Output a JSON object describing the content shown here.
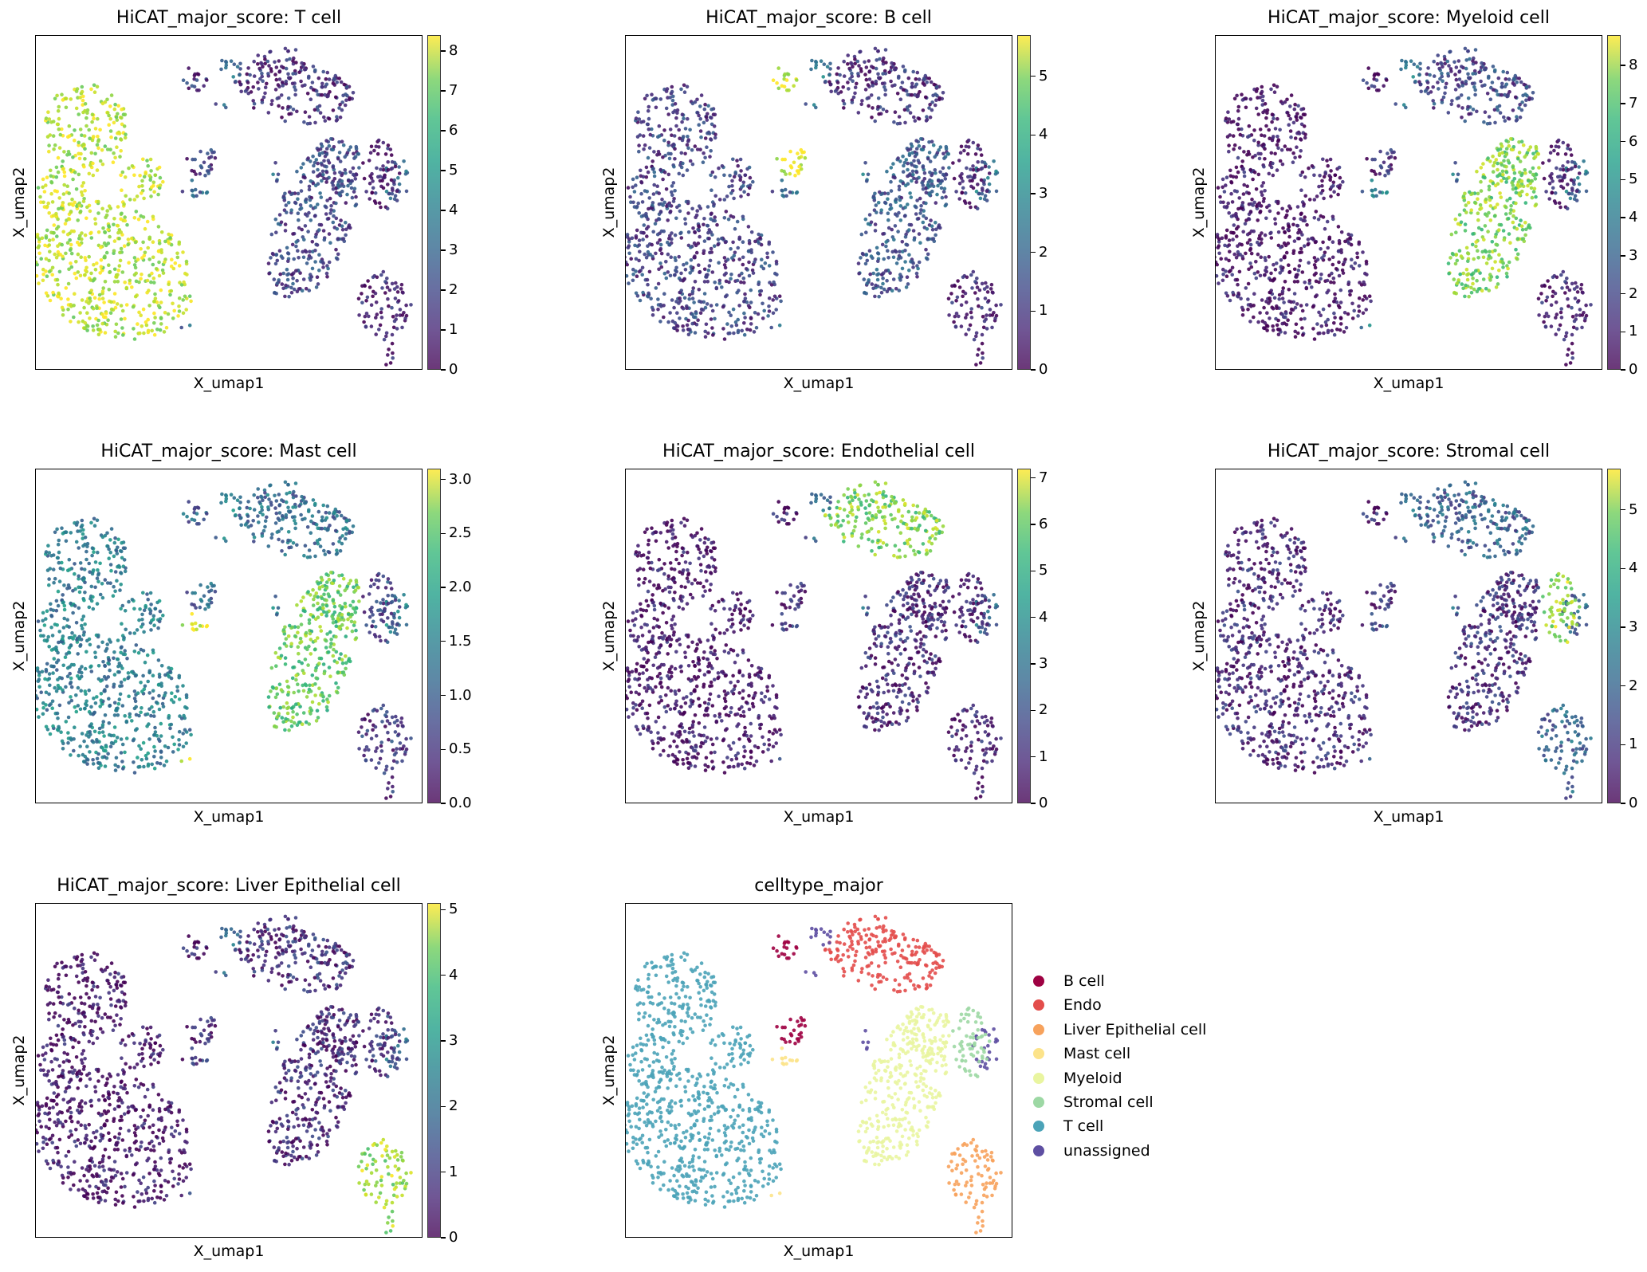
{
  "chart_data": [
    {
      "type": "scatter",
      "title": "HiCAT_major_score: T cell",
      "xlabel": "X_umap1",
      "ylabel": "X_umap2",
      "colorbar": {
        "min": 0,
        "max": 8.4,
        "ticks": [
          "0",
          "1",
          "2",
          "3",
          "4",
          "5",
          "6",
          "7",
          "8"
        ],
        "colormap": "viridis"
      },
      "cluster_levels": {
        "T cell": 0.9,
        "B cell": 0.15,
        "Myeloid": 0.2,
        "Endo": 0.12,
        "Stromal cell": 0.08,
        "Liver Epithelial cell": 0.08,
        "Mast cell": 0.3,
        "unassigned": 0.3
      }
    },
    {
      "type": "scatter",
      "title": "HiCAT_major_score: B cell",
      "xlabel": "X_umap1",
      "ylabel": "X_umap2",
      "colorbar": {
        "min": 0,
        "max": 5.7,
        "ticks": [
          "0",
          "1",
          "2",
          "3",
          "4",
          "5"
        ],
        "colormap": "viridis"
      },
      "cluster_levels": {
        "T cell": 0.18,
        "B cell": 0.95,
        "Myeloid": 0.25,
        "Endo": 0.12,
        "Stromal cell": 0.1,
        "Liver Epithelial cell": 0.08,
        "Mast cell": 0.3,
        "unassigned": 0.35
      }
    },
    {
      "type": "scatter",
      "title": "HiCAT_major_score: Myeloid cell",
      "xlabel": "X_umap1",
      "ylabel": "X_umap2",
      "colorbar": {
        "min": 0,
        "max": 8.8,
        "ticks": [
          "0",
          "1",
          "2",
          "3",
          "4",
          "5",
          "6",
          "7",
          "8"
        ],
        "colormap": "viridis"
      },
      "cluster_levels": {
        "T cell": 0.05,
        "B cell": 0.1,
        "Myeloid": 0.8,
        "Endo": 0.2,
        "Stromal cell": 0.1,
        "Liver Epithelial cell": 0.08,
        "Mast cell": 0.4,
        "unassigned": 0.35
      }
    },
    {
      "type": "scatter",
      "title": "HiCAT_major_score: Mast cell",
      "xlabel": "X_umap1",
      "ylabel": "X_umap2",
      "colorbar": {
        "min": 0.0,
        "max": 3.1,
        "ticks": [
          "0.0",
          "0.5",
          "1.0",
          "1.5",
          "2.0",
          "2.5",
          "3.0"
        ],
        "colormap": "viridis"
      },
      "cluster_levels": {
        "T cell": 0.42,
        "B cell": 0.3,
        "Myeloid": 0.75,
        "Endo": 0.35,
        "Stromal cell": 0.2,
        "Liver Epithelial cell": 0.15,
        "Mast cell": 0.95,
        "unassigned": 0.4
      }
    },
    {
      "type": "scatter",
      "title": "HiCAT_major_score: Endothelial cell",
      "xlabel": "X_umap1",
      "ylabel": "X_umap2",
      "colorbar": {
        "min": 0,
        "max": 7.2,
        "ticks": [
          "0",
          "1",
          "2",
          "3",
          "4",
          "5",
          "6",
          "7"
        ],
        "colormap": "viridis"
      },
      "cluster_levels": {
        "T cell": 0.05,
        "B cell": 0.08,
        "Myeloid": 0.1,
        "Endo": 0.8,
        "Stromal cell": 0.1,
        "Liver Epithelial cell": 0.08,
        "Mast cell": 0.15,
        "unassigned": 0.3
      }
    },
    {
      "type": "scatter",
      "title": "HiCAT_major_score: Stromal cell",
      "xlabel": "X_umap1",
      "ylabel": "X_umap2",
      "colorbar": {
        "min": 0,
        "max": 5.7,
        "ticks": [
          "0",
          "1",
          "2",
          "3",
          "4",
          "5"
        ],
        "colormap": "viridis"
      },
      "cluster_levels": {
        "T cell": 0.1,
        "B cell": 0.1,
        "Myeloid": 0.12,
        "Endo": 0.3,
        "Stromal cell": 0.85,
        "Liver Epithelial cell": 0.3,
        "Mast cell": 0.2,
        "unassigned": 0.3
      }
    },
    {
      "type": "scatter",
      "title": "HiCAT_major_score: Liver Epithelial cell",
      "xlabel": "X_umap1",
      "ylabel": "X_umap2",
      "colorbar": {
        "min": 0,
        "max": 5.1,
        "ticks": [
          "0",
          "1",
          "2",
          "3",
          "4",
          "5"
        ],
        "colormap": "viridis"
      },
      "cluster_levels": {
        "T cell": 0.05,
        "B cell": 0.08,
        "Myeloid": 0.1,
        "Endo": 0.12,
        "Stromal cell": 0.15,
        "Liver Epithelial cell": 0.85,
        "Mast cell": 0.15,
        "unassigned": 0.3
      }
    },
    {
      "type": "scatter",
      "title": "celltype_major",
      "xlabel": "X_umap1",
      "ylabel": "X_umap2",
      "legend": [
        {
          "label": "B cell",
          "color": "#9e0142"
        },
        {
          "label": "Endo",
          "color": "#e34d4b"
        },
        {
          "label": "Liver Epithelial cell",
          "color": "#f7a25c"
        },
        {
          "label": "Mast cell",
          "color": "#fce38a"
        },
        {
          "label": "Myeloid",
          "color": "#e9f5a0"
        },
        {
          "label": "Stromal cell",
          "color": "#9dd8a4"
        },
        {
          "label": "T cell",
          "color": "#4ba3b8"
        },
        {
          "label": "unassigned",
          "color": "#5e4fa2"
        }
      ]
    }
  ]
}
